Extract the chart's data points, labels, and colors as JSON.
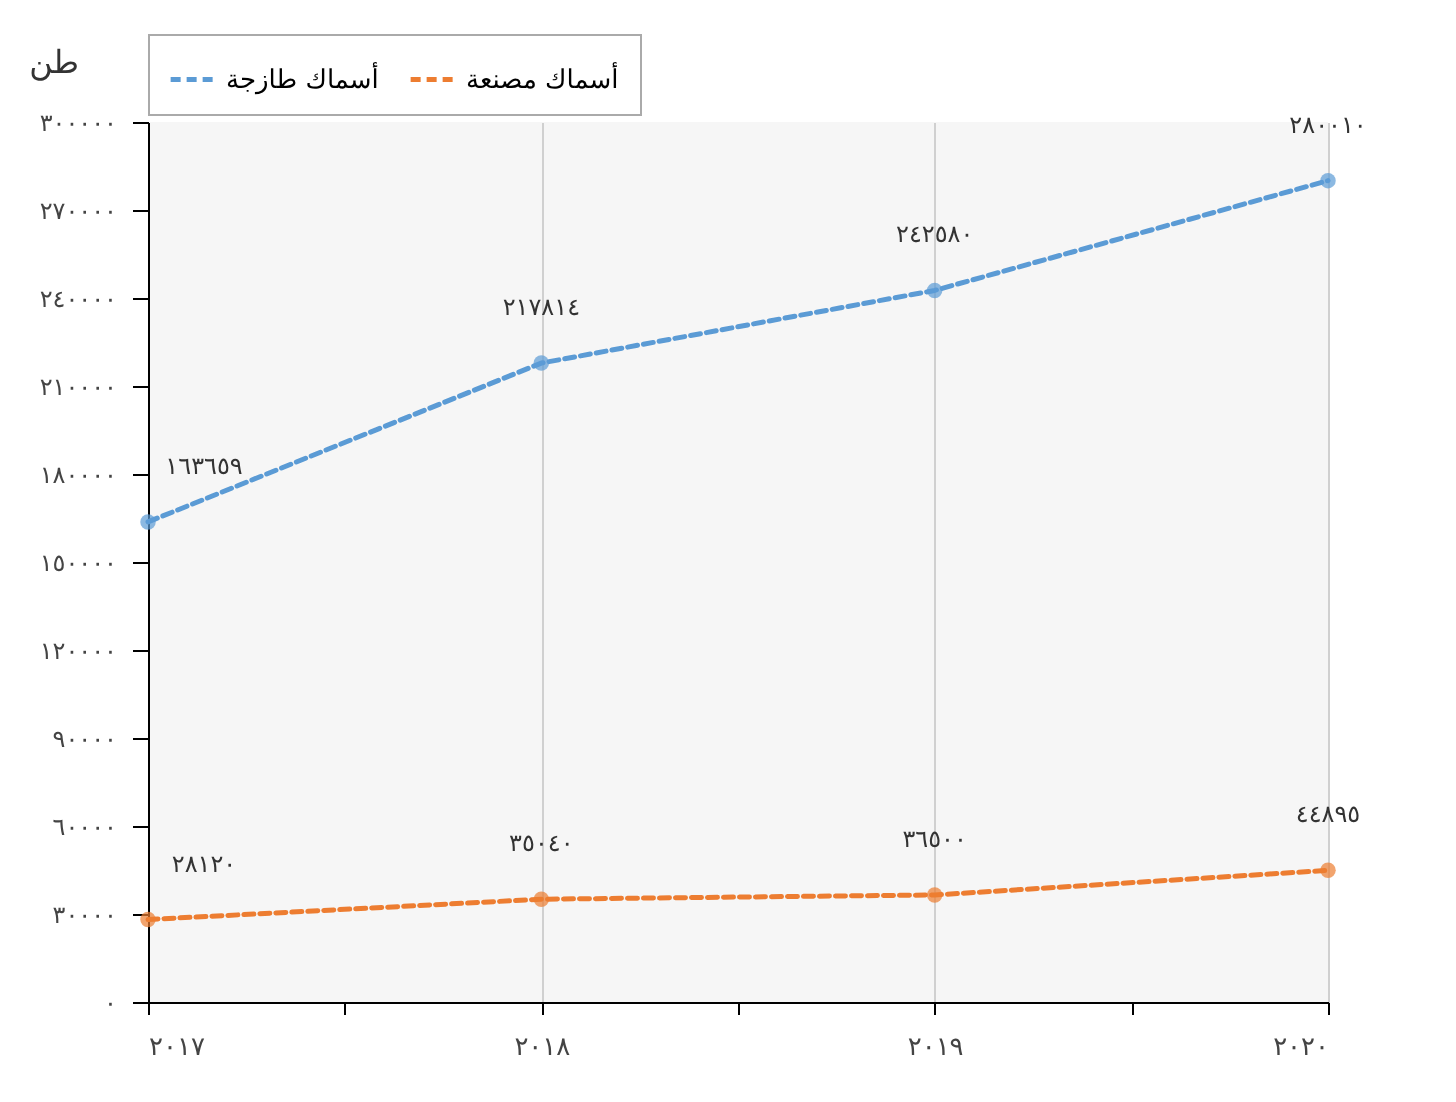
{
  "chart_data": {
    "type": "line",
    "ylabel": "طن",
    "x": [
      2017,
      2018,
      2019,
      2020
    ],
    "xlim": [
      2017,
      2020
    ],
    "xticks": [
      {
        "value": 2017,
        "label": "٢٠١٧"
      },
      {
        "value": 2017.5,
        "label": null
      },
      {
        "value": 2018,
        "label": "٢٠١٨"
      },
      {
        "value": 2018.5,
        "label": null
      },
      {
        "value": 2019,
        "label": "٢٠١٩"
      },
      {
        "value": 2019.5,
        "label": null
      },
      {
        "value": 2020,
        "label": "٢٠٢٠"
      }
    ],
    "ylim": [
      0,
      300000
    ],
    "yticks": [
      {
        "value": 0,
        "label": "٠"
      },
      {
        "value": 30000,
        "label": "٣٠٠٠٠"
      },
      {
        "value": 60000,
        "label": "٦٠٠٠٠"
      },
      {
        "value": 90000,
        "label": "٩٠٠٠٠"
      },
      {
        "value": 120000,
        "label": "١٢٠٠٠٠"
      },
      {
        "value": 150000,
        "label": "١٥٠٠٠٠"
      },
      {
        "value": 180000,
        "label": "١٨٠٠٠٠"
      },
      {
        "value": 210000,
        "label": "٢١٠٠٠٠"
      },
      {
        "value": 240000,
        "label": "٢٤٠٠٠٠"
      },
      {
        "value": 270000,
        "label": "٢٧٠٠٠٠"
      },
      {
        "value": 300000,
        "label": "٣٠٠٠٠٠"
      }
    ],
    "grid": "x",
    "legend": "top",
    "marker": "circle",
    "line_style": "dashed",
    "series": [
      {
        "name": "أسماك طازجة",
        "color": "#5b9bd5",
        "values": [
          163659,
          217814,
          242580,
          280010
        ],
        "value_labels": [
          "١٦٣٦٥٩",
          "٢١٧٨١٤",
          "٢٤٢٥٨٠",
          "٢٨٠٠١٠"
        ]
      },
      {
        "name": "أسماك مصنعة",
        "color": "#ed7d31",
        "values": [
          28120,
          35040,
          36500,
          44895
        ],
        "value_labels": [
          "٢٨١٢٠",
          "٣٥٠٤٠",
          "٣٦٥٠٠",
          "٤٤٨٩٥"
        ]
      }
    ]
  }
}
